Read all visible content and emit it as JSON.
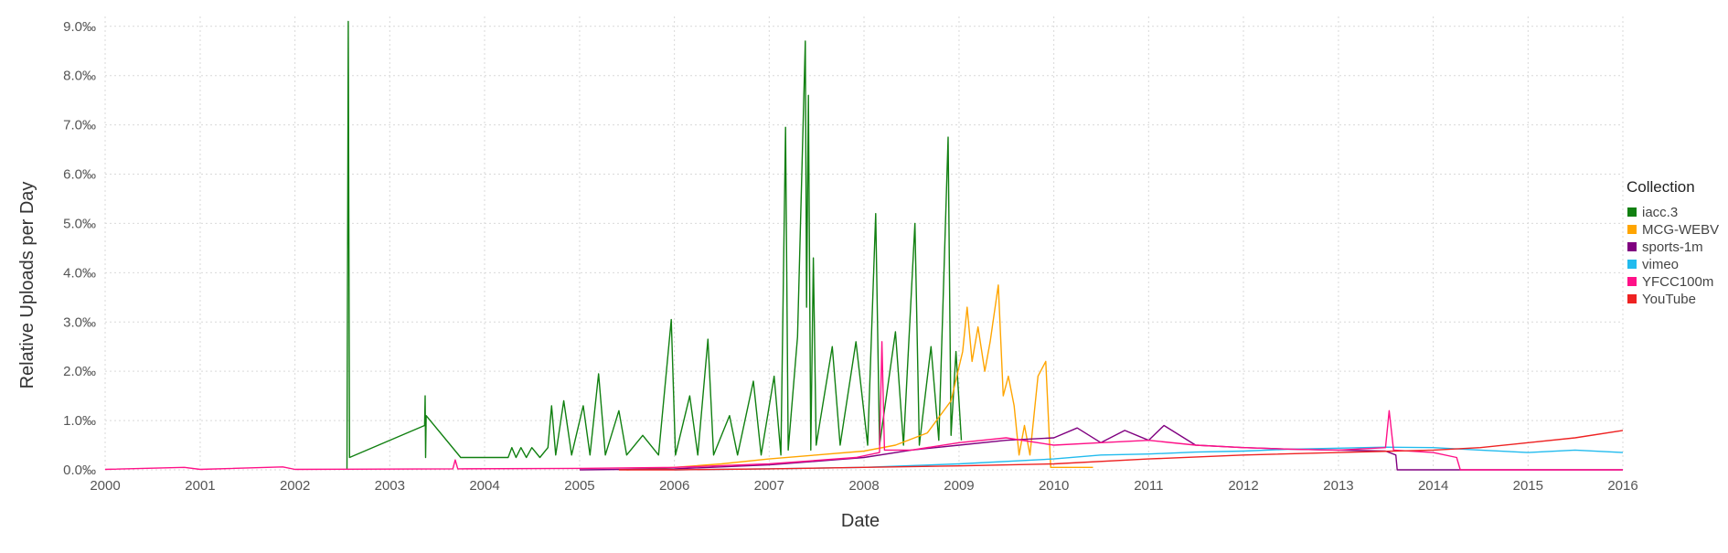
{
  "chart_data": {
    "type": "line",
    "xlabel": "Date",
    "ylabel": "Relative Uploads per Day",
    "x_ticks": [
      "2000",
      "2001",
      "2002",
      "2003",
      "2004",
      "2005",
      "2006",
      "2007",
      "2008",
      "2009",
      "2010",
      "2011",
      "2012",
      "2013",
      "2014",
      "2015",
      "2016"
    ],
    "y_ticks": [
      "0.0‰",
      "1.0‰",
      "2.0‰",
      "3.0‰",
      "4.0‰",
      "5.0‰",
      "6.0‰",
      "7.0‰",
      "8.0‰",
      "9.0‰"
    ],
    "xlim": [
      "2000-01-01",
      "2016-01-01"
    ],
    "ylim": [
      0,
      9.2
    ],
    "y_unit": "‰",
    "grid": true,
    "legend": {
      "title": "Collection",
      "position": "right"
    },
    "series": [
      {
        "name": "iacc.3",
        "color": "#118011",
        "points": [
          [
            "2002-07-20",
            0.0
          ],
          [
            "2002-07-25",
            9.1
          ],
          [
            "2002-07-30",
            0.25
          ],
          [
            "2003-05-15",
            0.9
          ],
          [
            "2003-05-17",
            1.5
          ],
          [
            "2003-05-19",
            0.25
          ],
          [
            "2003-05-21",
            1.1
          ],
          [
            "2003-10-01",
            0.25
          ],
          [
            "2004-04-01",
            0.25
          ],
          [
            "2004-04-15",
            0.45
          ],
          [
            "2004-05-01",
            0.25
          ],
          [
            "2004-05-20",
            0.45
          ],
          [
            "2004-06-10",
            0.25
          ],
          [
            "2004-07-01",
            0.45
          ],
          [
            "2004-08-01",
            0.25
          ],
          [
            "2004-09-01",
            0.45
          ],
          [
            "2004-09-15",
            1.3
          ],
          [
            "2004-10-01",
            0.3
          ],
          [
            "2004-11-01",
            1.4
          ],
          [
            "2004-12-01",
            0.3
          ],
          [
            "2005-01-15",
            1.3
          ],
          [
            "2005-02-10",
            0.3
          ],
          [
            "2005-03-15",
            1.95
          ],
          [
            "2005-04-10",
            0.3
          ],
          [
            "2005-06-01",
            1.2
          ],
          [
            "2005-07-01",
            0.3
          ],
          [
            "2005-09-01",
            0.7
          ],
          [
            "2005-11-01",
            0.3
          ],
          [
            "2005-12-20",
            3.05
          ],
          [
            "2006-01-05",
            0.3
          ],
          [
            "2006-03-01",
            1.5
          ],
          [
            "2006-04-01",
            0.3
          ],
          [
            "2006-05-10",
            2.65
          ],
          [
            "2006-06-01",
            0.3
          ],
          [
            "2006-08-01",
            1.1
          ],
          [
            "2006-09-01",
            0.3
          ],
          [
            "2006-11-01",
            1.8
          ],
          [
            "2006-12-01",
            0.3
          ],
          [
            "2007-01-20",
            1.9
          ],
          [
            "2007-02-15",
            0.3
          ],
          [
            "2007-03-05",
            6.95
          ],
          [
            "2007-03-15",
            0.4
          ],
          [
            "2007-04-20",
            2.7
          ],
          [
            "2007-05-20",
            8.7
          ],
          [
            "2007-05-25",
            3.3
          ],
          [
            "2007-06-01",
            7.6
          ],
          [
            "2007-06-10",
            0.4
          ],
          [
            "2007-06-20",
            4.3
          ],
          [
            "2007-07-01",
            0.5
          ],
          [
            "2007-09-01",
            2.5
          ],
          [
            "2007-10-01",
            0.5
          ],
          [
            "2007-12-01",
            2.6
          ],
          [
            "2008-01-15",
            0.5
          ],
          [
            "2008-02-15",
            5.2
          ],
          [
            "2008-03-01",
            0.5
          ],
          [
            "2008-05-01",
            2.8
          ],
          [
            "2008-06-01",
            0.5
          ],
          [
            "2008-07-15",
            5.0
          ],
          [
            "2008-08-01",
            0.5
          ],
          [
            "2008-09-15",
            2.5
          ],
          [
            "2008-10-15",
            0.6
          ],
          [
            "2008-11-20",
            6.75
          ],
          [
            "2008-12-01",
            0.7
          ],
          [
            "2008-12-20",
            2.4
          ],
          [
            "2009-01-10",
            0.6
          ]
        ]
      },
      {
        "name": "MCG-WEBV",
        "color": "#ffa500",
        "points": [
          [
            "2005-07-01",
            0.0
          ],
          [
            "2006-01-01",
            0.05
          ],
          [
            "2006-07-01",
            0.12
          ],
          [
            "2007-01-01",
            0.22
          ],
          [
            "2007-07-01",
            0.3
          ],
          [
            "2008-01-01",
            0.38
          ],
          [
            "2008-05-01",
            0.5
          ],
          [
            "2008-09-01",
            0.75
          ],
          [
            "2008-12-01",
            1.4
          ],
          [
            "2009-01-15",
            2.4
          ],
          [
            "2009-02-01",
            3.3
          ],
          [
            "2009-02-20",
            2.2
          ],
          [
            "2009-03-15",
            2.9
          ],
          [
            "2009-04-10",
            2.0
          ],
          [
            "2009-05-01",
            2.6
          ],
          [
            "2009-06-01",
            3.75
          ],
          [
            "2009-06-20",
            1.5
          ],
          [
            "2009-07-10",
            1.9
          ],
          [
            "2009-08-01",
            1.3
          ],
          [
            "2009-08-20",
            0.3
          ],
          [
            "2009-09-10",
            0.9
          ],
          [
            "2009-10-01",
            0.3
          ],
          [
            "2009-11-01",
            1.9
          ],
          [
            "2009-12-01",
            2.2
          ],
          [
            "2009-12-20",
            0.05
          ],
          [
            "2010-06-01",
            0.05
          ]
        ]
      },
      {
        "name": "sports-1m",
        "color": "#800080",
        "points": [
          [
            "2005-01-01",
            0.0
          ],
          [
            "2006-01-01",
            0.02
          ],
          [
            "2007-01-01",
            0.1
          ],
          [
            "2008-01-01",
            0.25
          ],
          [
            "2008-07-01",
            0.4
          ],
          [
            "2009-01-01",
            0.5
          ],
          [
            "2009-07-01",
            0.6
          ],
          [
            "2010-01-01",
            0.65
          ],
          [
            "2010-04-01",
            0.85
          ],
          [
            "2010-07-01",
            0.55
          ],
          [
            "2010-10-01",
            0.8
          ],
          [
            "2011-01-01",
            0.6
          ],
          [
            "2011-03-01",
            0.9
          ],
          [
            "2011-07-01",
            0.5
          ],
          [
            "2012-01-01",
            0.45
          ],
          [
            "2012-07-01",
            0.42
          ],
          [
            "2013-01-01",
            0.4
          ],
          [
            "2013-07-01",
            0.38
          ],
          [
            "2013-08-10",
            0.3
          ],
          [
            "2013-08-15",
            0.0
          ],
          [
            "2016-01-01",
            0.0
          ]
        ]
      },
      {
        "name": "vimeo",
        "color": "#22bbee",
        "points": [
          [
            "2006-01-01",
            0.0
          ],
          [
            "2007-01-01",
            0.02
          ],
          [
            "2008-01-01",
            0.05
          ],
          [
            "2009-01-01",
            0.12
          ],
          [
            "2010-01-01",
            0.22
          ],
          [
            "2010-07-01",
            0.3
          ],
          [
            "2011-01-01",
            0.32
          ],
          [
            "2011-07-01",
            0.36
          ],
          [
            "2012-01-01",
            0.38
          ],
          [
            "2012-07-01",
            0.42
          ],
          [
            "2013-01-01",
            0.44
          ],
          [
            "2013-07-01",
            0.46
          ],
          [
            "2014-01-01",
            0.45
          ],
          [
            "2014-07-01",
            0.4
          ],
          [
            "2015-01-01",
            0.35
          ],
          [
            "2015-07-01",
            0.4
          ],
          [
            "2016-01-01",
            0.35
          ]
        ]
      },
      {
        "name": "YFCC100m",
        "color": "#ff1188",
        "points": [
          [
            "2000-01-01",
            0.01
          ],
          [
            "2000-11-01",
            0.05
          ],
          [
            "2001-01-01",
            0.01
          ],
          [
            "2001-11-15",
            0.06
          ],
          [
            "2002-01-01",
            0.01
          ],
          [
            "2003-09-01",
            0.02
          ],
          [
            "2003-09-10",
            0.2
          ],
          [
            "2003-09-20",
            0.02
          ],
          [
            "2005-01-01",
            0.03
          ],
          [
            "2006-01-01",
            0.05
          ],
          [
            "2007-01-01",
            0.12
          ],
          [
            "2007-12-01",
            0.25
          ],
          [
            "2008-03-01",
            0.35
          ],
          [
            "2008-03-10",
            2.6
          ],
          [
            "2008-03-20",
            0.4
          ],
          [
            "2008-07-01",
            0.4
          ],
          [
            "2009-01-01",
            0.55
          ],
          [
            "2009-07-01",
            0.65
          ],
          [
            "2010-01-01",
            0.5
          ],
          [
            "2010-07-01",
            0.55
          ],
          [
            "2011-01-01",
            0.6
          ],
          [
            "2011-07-01",
            0.5
          ],
          [
            "2012-01-01",
            0.45
          ],
          [
            "2012-07-01",
            0.42
          ],
          [
            "2013-01-01",
            0.4
          ],
          [
            "2013-07-01",
            0.45
          ],
          [
            "2013-07-15",
            1.2
          ],
          [
            "2013-08-01",
            0.4
          ],
          [
            "2014-01-01",
            0.35
          ],
          [
            "2014-04-01",
            0.25
          ],
          [
            "2014-04-15",
            0.0
          ],
          [
            "2016-01-01",
            0.0
          ]
        ]
      },
      {
        "name": "YouTube",
        "color": "#ee2222",
        "points": [
          [
            "2005-06-01",
            0.0
          ],
          [
            "2006-01-01",
            0.0
          ],
          [
            "2007-01-01",
            0.02
          ],
          [
            "2008-01-01",
            0.05
          ],
          [
            "2009-01-01",
            0.08
          ],
          [
            "2010-01-01",
            0.12
          ],
          [
            "2011-01-01",
            0.22
          ],
          [
            "2012-01-01",
            0.3
          ],
          [
            "2013-01-01",
            0.35
          ],
          [
            "2014-01-01",
            0.4
          ],
          [
            "2014-07-01",
            0.45
          ],
          [
            "2015-01-01",
            0.55
          ],
          [
            "2015-07-01",
            0.65
          ],
          [
            "2016-01-01",
            0.8
          ]
        ]
      }
    ]
  }
}
